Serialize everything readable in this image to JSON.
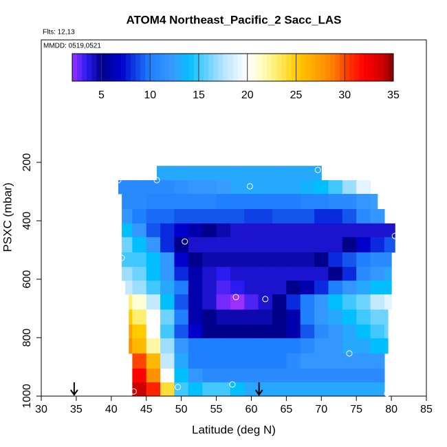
{
  "chart_data": {
    "type": "curtain",
    "title": "ATOM4 Northeast_Pacific_2 Sacc_LAS",
    "subtitle": "Flts: 12,13",
    "annotation": "MMDD: 0519,0521",
    "xlabel": "Latitude (deg N)",
    "ylabel": "PSXC (mbar)",
    "xlim": [
      30,
      85
    ],
    "xticks": [
      30,
      35,
      40,
      45,
      50,
      55,
      60,
      65,
      70,
      75,
      80,
      85
    ],
    "ylim": [
      1000,
      -219
    ],
    "yticks": [
      200,
      400,
      600,
      800,
      1000
    ],
    "x": [
      42,
      44,
      46,
      48,
      50,
      52,
      54,
      56,
      58,
      60,
      62,
      64,
      66,
      68,
      70,
      72,
      74,
      76,
      78,
      80
    ],
    "rows": [
      {
        "pressure": [
          212,
          261
        ],
        "lat": [
          46.5,
          70
        ],
        "values": [
          null,
          null,
          13,
          13,
          13,
          13,
          13,
          13,
          13,
          13,
          13,
          13,
          13,
          13,
          13,
          null,
          null,
          null,
          null,
          null
        ]
      },
      {
        "pressure": [
          261,
          308
        ],
        "lat": [
          41,
          77
        ],
        "values": [
          11,
          11,
          11,
          11,
          11.5,
          12,
          12,
          12.5,
          13,
          13,
          13,
          13,
          13,
          13.5,
          14,
          15,
          17,
          19,
          null,
          null
        ]
      },
      {
        "pressure": [
          308,
          360
        ],
        "lat": [
          41.5,
          78
        ],
        "values": [
          11,
          11,
          10.5,
          10.5,
          10.5,
          10.5,
          10.5,
          10,
          10,
          10,
          10,
          10,
          10,
          10.5,
          10.5,
          11,
          11,
          12,
          12.5,
          null
        ]
      },
      {
        "pressure": [
          360,
          409
        ],
        "lat": [
          41.5,
          79
        ],
        "values": [
          12,
          10,
          9.5,
          9.5,
          9,
          9,
          9,
          9,
          9,
          8.5,
          8.5,
          9,
          9,
          9,
          8,
          8,
          9,
          11,
          12,
          null
        ]
      },
      {
        "pressure": [
          409,
          456
        ],
        "lat": [
          41.5,
          80.5
        ],
        "values": [
          14,
          12,
          9,
          8,
          7,
          6,
          5,
          4.5,
          4,
          4,
          4,
          4,
          4,
          4,
          4,
          4,
          4,
          4,
          4,
          4
        ]
      },
      {
        "pressure": [
          456,
          508
        ],
        "lat": [
          41.5,
          80.5
        ],
        "values": [
          16,
          14,
          12,
          8,
          5,
          4,
          4,
          4,
          4,
          4,
          4,
          4,
          4,
          4,
          4,
          4,
          5,
          7,
          8,
          9
        ]
      },
      {
        "pressure": [
          508,
          558
        ],
        "lat": [
          41.5,
          80
        ],
        "values": [
          15,
          15,
          14,
          12,
          7,
          5,
          4.5,
          4.5,
          4.5,
          4.5,
          4.5,
          4.5,
          4.5,
          4.5,
          5,
          8,
          9,
          10,
          11,
          11
        ]
      },
      {
        "pressure": [
          558,
          605
        ],
        "lat": [
          41.5,
          80
        ],
        "values": [
          17,
          16,
          14,
          12,
          8,
          6,
          4,
          3.5,
          4,
          4,
          4,
          4,
          4,
          4,
          4,
          5,
          8,
          11,
          12,
          13
        ]
      },
      {
        "pressure": [
          605,
          652
        ],
        "lat": [
          42,
          80
        ],
        "values": [
          18,
          17,
          15,
          13,
          10,
          6,
          4,
          3,
          3.5,
          4,
          4,
          4,
          5,
          6,
          8,
          10,
          12,
          13,
          14,
          14
        ]
      },
      {
        "pressure": [
          652,
          704
        ],
        "lat": [
          42.5,
          80
        ],
        "values": [
          23,
          21,
          18,
          14,
          9,
          6,
          4,
          2.5,
          2,
          3,
          4,
          5,
          8,
          10,
          12,
          14,
          15,
          16,
          18,
          19
        ]
      },
      {
        "pressure": [
          704,
          755
        ],
        "lat": [
          42.5,
          79.5
        ],
        "values": [
          25,
          23,
          20,
          16,
          10,
          6,
          5,
          4.5,
          4.5,
          4.5,
          4.5,
          5,
          6,
          10,
          12,
          13,
          14,
          15,
          16,
          16
        ]
      },
      {
        "pressure": [
          755,
          802
        ],
        "lat": [
          42.5,
          79.5
        ],
        "values": [
          27,
          25,
          20,
          15,
          9,
          7,
          5,
          5,
          5,
          5,
          5,
          5,
          6,
          9,
          11,
          12,
          13,
          14,
          15,
          16
        ]
      },
      {
        "pressure": [
          802,
          854
        ],
        "lat": [
          42.5,
          79.5
        ],
        "values": [
          28,
          26,
          22,
          17,
          12,
          10,
          10,
          10,
          10,
          10,
          10,
          10,
          10,
          11,
          12,
          12,
          13,
          13,
          14,
          14
        ]
      },
      {
        "pressure": [
          854,
          906
        ],
        "lat": [
          43,
          79
        ],
        "values": [
          null,
          30,
          26,
          18,
          13,
          10,
          10,
          10,
          10,
          10,
          10,
          10,
          11,
          12,
          12,
          12,
          12,
          12,
          12,
          null
        ]
      },
      {
        "pressure": [
          906,
          953
        ],
        "lat": [
          43,
          79
        ],
        "values": [
          null,
          32,
          28,
          20,
          14,
          12,
          11,
          11,
          11,
          11,
          11,
          11,
          11,
          11,
          11,
          11,
          11,
          11,
          11,
          null
        ]
      },
      {
        "pressure": [
          953,
          1000
        ],
        "lat": [
          43,
          79
        ],
        "values": [
          null,
          34,
          31,
          24,
          15,
          14,
          15,
          15,
          14,
          13,
          13,
          13,
          13,
          13,
          13,
          13,
          13,
          13,
          13,
          null
        ]
      }
    ],
    "points": {
      "color": "#ffffff",
      "x": [
        41,
        46.5,
        69.5,
        59.8,
        80.5,
        50.5,
        41.5,
        57.8,
        62,
        74,
        43.2,
        49.5,
        57.3,
        79.4
      ],
      "y": [
        261,
        261,
        226,
        282,
        452,
        471,
        527,
        661,
        668,
        854,
        984,
        969,
        960,
        991
      ]
    },
    "arrows": {
      "color": "#000000",
      "x": [
        34.7,
        61.1
      ]
    },
    "colorbar": {
      "lim": [
        2,
        35
      ],
      "ticks": [
        5,
        10,
        15,
        20,
        25,
        30,
        35
      ],
      "stops": [
        [
          2,
          "#9b30ff"
        ],
        [
          3.5,
          "#2a1cf0"
        ],
        [
          5,
          "#00008b"
        ],
        [
          7,
          "#0000cd"
        ],
        [
          10,
          "#1e7fff"
        ],
        [
          12.5,
          "#3a9cff"
        ],
        [
          14,
          "#00bfff"
        ],
        [
          15,
          "#40c8ff"
        ],
        [
          17.5,
          "#b4e4ff"
        ],
        [
          20,
          "#ffffff"
        ],
        [
          21,
          "#ffffd8"
        ],
        [
          23,
          "#ffee70"
        ],
        [
          25,
          "#ffcc00"
        ],
        [
          27,
          "#ffa500"
        ],
        [
          29,
          "#ff7a00"
        ],
        [
          30,
          "#ff4500"
        ],
        [
          32,
          "#ff0000"
        ],
        [
          34,
          "#cc0000"
        ],
        [
          35,
          "#800000"
        ]
      ]
    }
  }
}
